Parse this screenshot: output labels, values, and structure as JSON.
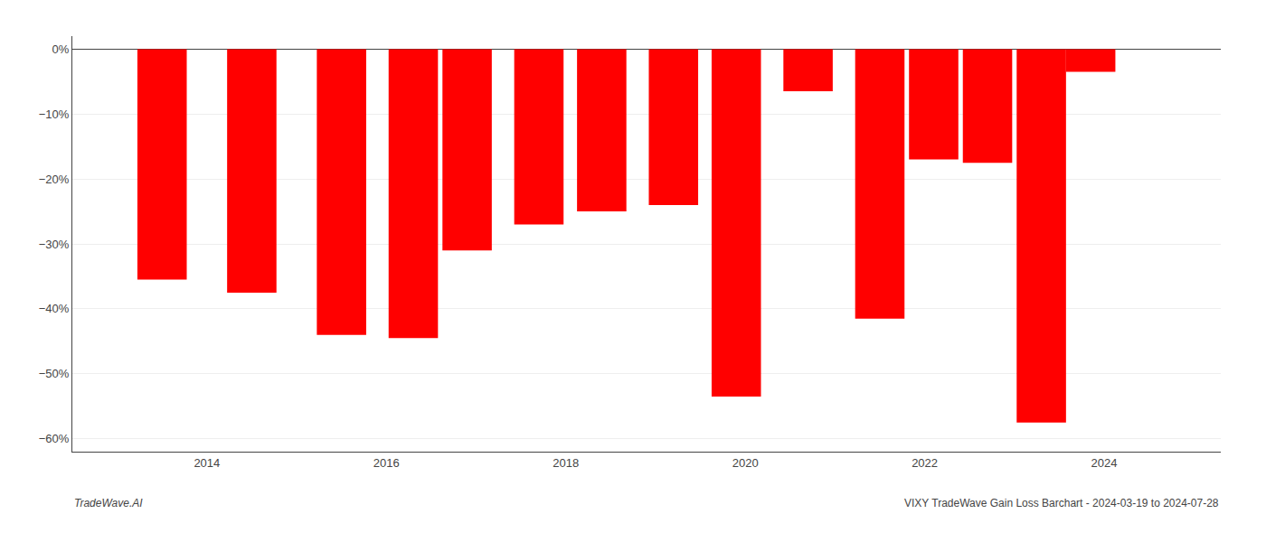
{
  "chart_data": {
    "type": "bar",
    "x": [
      2013.5,
      2014.5,
      2015.5,
      2016.3,
      2016.9,
      2017.7,
      2018.4,
      2019.2,
      2019.9,
      2020.7,
      2021.5,
      2022.1,
      2022.7,
      2023.3,
      2023.85
    ],
    "values": [
      -35.5,
      -37.5,
      -44.0,
      -44.5,
      -31.0,
      -27.0,
      -25.0,
      -24.0,
      -53.5,
      -6.5,
      -41.5,
      -17.0,
      -17.5,
      -57.5,
      -3.5
    ],
    "color": "#ff0000",
    "xlim": [
      2012.5,
      2025.3
    ],
    "xticks": [
      2014,
      2016,
      2018,
      2020,
      2022,
      2024
    ],
    "ylim": [
      -62,
      2
    ],
    "yticks": [
      {
        "value": 0,
        "label": "0%"
      },
      {
        "value": -10,
        "label": "−10%"
      },
      {
        "value": -20,
        "label": "−20%"
      },
      {
        "value": -30,
        "label": "−30%"
      },
      {
        "value": -40,
        "label": "−40%"
      },
      {
        "value": -50,
        "label": "−50%"
      },
      {
        "value": -60,
        "label": "−60%"
      }
    ],
    "grid": true,
    "annotations": [
      "TradeWave.AI",
      "VIXY TradeWave Gain Loss Barchart - 2024-03-19 to 2024-07-28"
    ]
  }
}
